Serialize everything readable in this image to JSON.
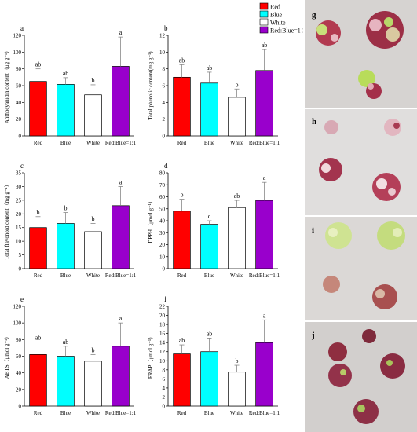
{
  "legend": {
    "items": [
      {
        "label": "Red",
        "color": "#ff0000"
      },
      {
        "label": "Blue",
        "color": "#00ffff"
      },
      {
        "label": "White",
        "color": "#ffffff"
      },
      {
        "label": "Red:Blue=1：1",
        "color": "#9900cc"
      }
    ]
  },
  "photos": {
    "labels": [
      "g",
      "h",
      "i",
      "j"
    ]
  },
  "chart_data": [
    {
      "panel": "a",
      "type": "bar",
      "categories": [
        "Red",
        "Blue",
        "White",
        "Red:Blue=1:1"
      ],
      "values": [
        65,
        61.5,
        49,
        83
      ],
      "errors": [
        15,
        8,
        12,
        35
      ],
      "letters": [
        "ab",
        "ab",
        "b",
        "a"
      ],
      "colors": [
        "#ff0000",
        "#00ffff",
        "#ffffff",
        "#9900cc"
      ],
      "ylabel": "Anthocyanidin content（μg g⁻¹）",
      "ylim": [
        0,
        120
      ],
      "yticks": [
        0,
        20,
        40,
        60,
        80,
        100,
        120
      ]
    },
    {
      "panel": "b",
      "type": "bar",
      "categories": [
        "Red",
        "Blue",
        "White",
        "Red:Blue=1:1"
      ],
      "values": [
        7,
        6.3,
        4.6,
        7.8
      ],
      "errors": [
        1.5,
        1.3,
        1.0,
        2.5
      ],
      "letters": [
        "ab",
        "ab",
        "b",
        "ab"
      ],
      "colors": [
        "#ff0000",
        "#00ffff",
        "#ffffff",
        "#9900cc"
      ],
      "ylabel": "Total phenolic content(mg g⁻¹)",
      "ylim": [
        0,
        12
      ],
      "yticks": [
        0,
        2,
        4,
        6,
        8,
        10,
        12
      ]
    },
    {
      "panel": "c",
      "type": "bar",
      "categories": [
        "Red",
        "Blue",
        "White",
        "Red:Blue=1:1"
      ],
      "values": [
        15,
        16.5,
        13.5,
        23
      ],
      "errors": [
        4,
        4,
        3,
        7
      ],
      "letters": [
        "b",
        "b",
        "b",
        "a"
      ],
      "colors": [
        "#ff0000",
        "#00ffff",
        "#ffffff",
        "#9900cc"
      ],
      "ylabel": "Total flavonoid content（mg g⁻¹）",
      "ylim": [
        0,
        35
      ],
      "yticks": [
        0,
        5,
        10,
        15,
        20,
        25,
        30,
        35
      ]
    },
    {
      "panel": "d",
      "type": "bar",
      "categories": [
        "Red",
        "Blue",
        "White",
        "Red:Blue=1:1"
      ],
      "values": [
        48,
        37,
        51,
        57
      ],
      "errors": [
        10,
        3,
        6,
        15
      ],
      "letters": [
        "b",
        "c",
        "ab",
        "a"
      ],
      "colors": [
        "#ff0000",
        "#00ffff",
        "#ffffff",
        "#9900cc"
      ],
      "ylabel": "DPPH（μmol g⁻¹）",
      "ylim": [
        0,
        80
      ],
      "yticks": [
        0,
        10,
        20,
        30,
        40,
        50,
        60,
        70,
        80
      ]
    },
    {
      "panel": "e",
      "type": "bar",
      "categories": [
        "Red",
        "Blue",
        "White",
        "Red:Blue=1:1"
      ],
      "values": [
        62,
        60,
        54,
        72
      ],
      "errors": [
        15,
        12,
        8,
        28
      ],
      "letters": [
        "ab",
        "ab",
        "b",
        "a"
      ],
      "colors": [
        "#ff0000",
        "#00ffff",
        "#ffffff",
        "#9900cc"
      ],
      "ylabel": "ABTS（μmol g⁻¹）",
      "ylim": [
        0,
        120
      ],
      "yticks": [
        0,
        20,
        40,
        60,
        80,
        100,
        120
      ]
    },
    {
      "panel": "f",
      "type": "bar",
      "categories": [
        "Red",
        "Blue",
        "White",
        "Red:Blue=1:1"
      ],
      "values": [
        11.5,
        12,
        7.5,
        14
      ],
      "errors": [
        2,
        3,
        1.5,
        5
      ],
      "letters": [
        "ab",
        "ab",
        "b",
        "a"
      ],
      "colors": [
        "#ff0000",
        "#00ffff",
        "#ffffff",
        "#9900cc"
      ],
      "ylabel": "FRAP（μmol g⁻¹）",
      "ylim": [
        0,
        22
      ],
      "yticks": [
        0,
        2,
        4,
        6,
        8,
        10,
        12,
        14,
        16,
        18,
        20,
        22
      ]
    }
  ]
}
